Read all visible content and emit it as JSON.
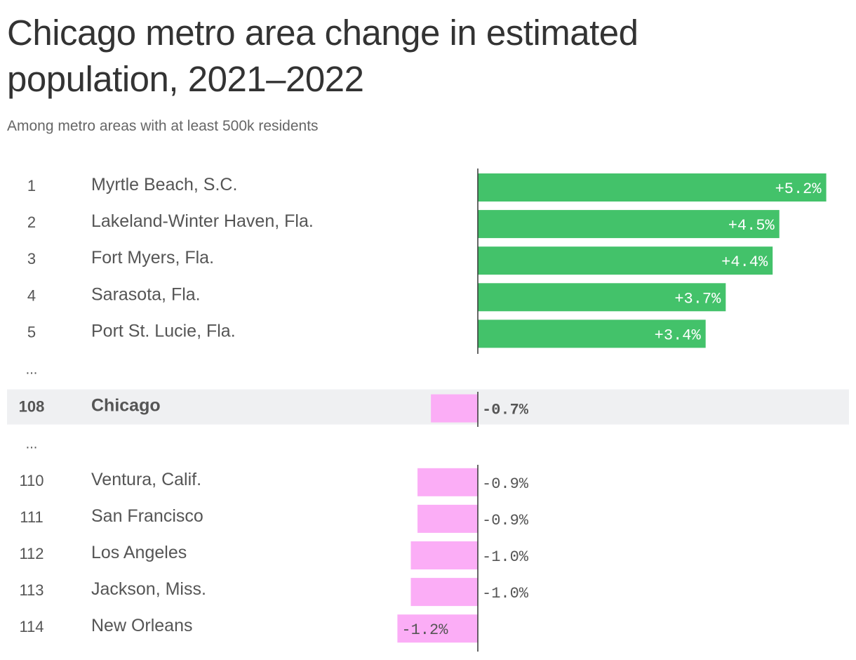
{
  "header": {
    "title": "Chicago metro area change in estimated population, 2021–2022",
    "subtitle": "Among metro areas with at least 500k residents"
  },
  "chart_data": {
    "type": "bar",
    "title": "Chicago metro area change in estimated population, 2021–2022",
    "subtitle": "Among metro areas with at least 500k residents",
    "unit": "%",
    "rows": [
      {
        "rank": "1",
        "name": "Myrtle Beach, S.C.",
        "value": 5.2,
        "label": "+5.2%"
      },
      {
        "rank": "2",
        "name": "Lakeland-Winter Haven, Fla.",
        "value": 4.5,
        "label": "+4.5%"
      },
      {
        "rank": "3",
        "name": "Fort Myers, Fla.",
        "value": 4.4,
        "label": "+4.4%"
      },
      {
        "rank": "4",
        "name": "Sarasota, Fla.",
        "value": 3.7,
        "label": "+3.7%"
      },
      {
        "rank": "5",
        "name": "Port St. Lucie, Fla.",
        "value": 3.4,
        "label": "+3.4%"
      },
      {
        "rank": "...",
        "gap": true
      },
      {
        "rank": "108",
        "name": "Chicago",
        "value": -0.7,
        "label": "-0.7%",
        "highlight": true
      },
      {
        "rank": "...",
        "gap": true
      },
      {
        "rank": "110",
        "name": "Ventura, Calif.",
        "value": -0.9,
        "label": "-0.9%"
      },
      {
        "rank": "111",
        "name": "San Francisco",
        "value": -0.9,
        "label": "-0.9%"
      },
      {
        "rank": "112",
        "name": "Los Angeles",
        "value": -1.0,
        "label": "-1.0%"
      },
      {
        "rank": "113",
        "name": "Jackson, Miss.",
        "value": -1.0,
        "label": "-1.0%"
      },
      {
        "rank": "114",
        "name": "New Orleans",
        "value": -1.2,
        "label": "-1.2%"
      }
    ],
    "colors": {
      "positive": "#43c26a",
      "negative": "#fbadf6",
      "highlight_band": "#eff0f2",
      "zero_line": "#333333"
    }
  }
}
